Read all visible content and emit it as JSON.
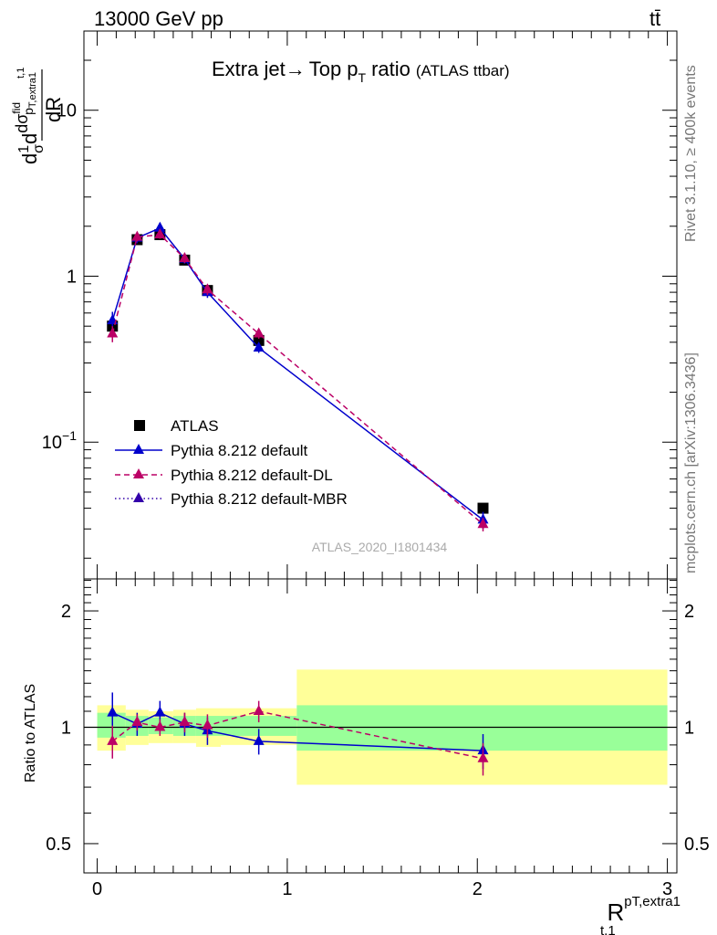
{
  "header": {
    "energy_label": "13000 GeV pp",
    "process_label": "tt̄"
  },
  "side_labels": {
    "rivet": "Rivet 3.1.10, ≥ 400k events",
    "source": "mcplots.cern.ch [arXiv:1306.3436]"
  },
  "colors": {
    "data": "#000000",
    "default": "#0000cc",
    "default_dl": "#bb0066",
    "default_mbr": "#3300aa",
    "band_inner": "#99ff99",
    "band_outer": "#ffff99"
  },
  "chart_data": [
    {
      "type": "scatter",
      "panel": "main",
      "title": "Extra jet→ Top pT ratio",
      "title_main": "Extra jet",
      "title_arrow": "→",
      "title_top": "Top p",
      "title_top_sub": "T",
      "title_ratio": "ratio",
      "subtitle": "(ATLAS ttbar)",
      "analysis_label": "ATLAS_2020_I1801434",
      "ylabel_parts": {
        "d1": "d",
        "one": "1",
        "sigma": "σ",
        "d2": "d",
        "dsigma": "dσ",
        "fid": "fid",
        "sub": "p",
        "subsub": "T,extra1",
        "dR": "dR",
        "t1": "t,1"
      },
      "xlabel": "R",
      "xlabel_sup": "pT,extra1",
      "xlabel_sub": "t,1",
      "yscale": "log",
      "ylim": [
        0.015,
        30
      ],
      "xlim": [
        -0.07,
        3.05
      ],
      "yticks": [
        {
          "value": 0.1,
          "base": "10",
          "exp": "−1"
        },
        {
          "value": 1,
          "label": "1"
        },
        {
          "value": 10,
          "label": "10"
        }
      ],
      "legend_position": "center-left",
      "series": [
        {
          "name": "ATLAS",
          "marker": "square",
          "x": [
            0.08,
            0.21,
            0.33,
            0.46,
            0.58,
            0.85,
            2.03
          ],
          "y": [
            0.5,
            1.66,
            1.78,
            1.25,
            0.82,
            0.41,
            0.04
          ]
        },
        {
          "name": "Pythia 8.212 default",
          "marker": "triangle",
          "style": "solid",
          "x": [
            0.08,
            0.21,
            0.33,
            0.46,
            0.58,
            0.85,
            2.03
          ],
          "y": [
            0.54,
            1.7,
            1.95,
            1.27,
            0.8,
            0.37,
            0.034
          ],
          "err": [
            0.07,
            0.12,
            0.15,
            0.08,
            0.06,
            0.025,
            0.004
          ]
        },
        {
          "name": "Pythia 8.212 default-DL",
          "marker": "triangle",
          "style": "dashed",
          "x": [
            0.08,
            0.21,
            0.33,
            0.46,
            0.58,
            0.85,
            2.03
          ],
          "y": [
            0.45,
            1.72,
            1.78,
            1.28,
            0.83,
            0.45,
            0.032
          ],
          "err": [
            0.05,
            0.1,
            0.1,
            0.08,
            0.06,
            0.03,
            0.003
          ]
        },
        {
          "name": "Pythia 8.212 default-MBR",
          "marker": "triangle",
          "style": "dotted",
          "x": [],
          "y": []
        }
      ]
    },
    {
      "type": "scatter",
      "panel": "ratio",
      "ylabel": "Ratio to ATLAS",
      "ylim": [
        0.42,
        2.42
      ],
      "xlim": [
        -0.07,
        3.05
      ],
      "yscale": "log",
      "yticks": [
        0.5,
        1,
        2
      ],
      "xticks": [
        0,
        1,
        2,
        3
      ],
      "reference_line": 1,
      "bands": [
        {
          "x": [
            0.0,
            0.15
          ],
          "inner": [
            0.94,
            1.09
          ],
          "outer": [
            0.87,
            1.14
          ]
        },
        {
          "x": [
            0.15,
            0.27
          ],
          "inner": [
            0.95,
            1.07
          ],
          "outer": [
            0.9,
            1.11
          ]
        },
        {
          "x": [
            0.27,
            0.4
          ],
          "inner": [
            0.96,
            1.06
          ],
          "outer": [
            0.91,
            1.1
          ]
        },
        {
          "x": [
            0.4,
            0.52
          ],
          "inner": [
            0.95,
            1.07
          ],
          "outer": [
            0.91,
            1.11
          ]
        },
        {
          "x": [
            0.52,
            0.65
          ],
          "inner": [
            0.95,
            1.07
          ],
          "outer": [
            0.89,
            1.12
          ]
        },
        {
          "x": [
            0.65,
            1.05
          ],
          "inner": [
            0.95,
            1.07
          ],
          "outer": [
            0.9,
            1.12
          ]
        },
        {
          "x": [
            1.05,
            3.0
          ],
          "inner": [
            0.87,
            1.14
          ],
          "outer": [
            0.71,
            1.41
          ]
        }
      ],
      "series": [
        {
          "name": "Pythia 8.212 default",
          "style": "solid",
          "x": [
            0.08,
            0.21,
            0.33,
            0.46,
            0.58,
            0.85,
            2.03
          ],
          "y": [
            1.09,
            1.02,
            1.09,
            1.02,
            0.98,
            0.92,
            0.87
          ],
          "err": [
            0.14,
            0.07,
            0.08,
            0.07,
            0.08,
            0.07,
            0.09
          ]
        },
        {
          "name": "Pythia 8.212 default-DL",
          "style": "dashed",
          "x": [
            0.08,
            0.21,
            0.33,
            0.46,
            0.58,
            0.85,
            2.03
          ],
          "y": [
            0.92,
            1.03,
            1.0,
            1.03,
            1.01,
            1.1,
            0.83
          ],
          "err": [
            0.09,
            0.05,
            0.05,
            0.06,
            0.07,
            0.07,
            0.08
          ]
        }
      ]
    }
  ]
}
